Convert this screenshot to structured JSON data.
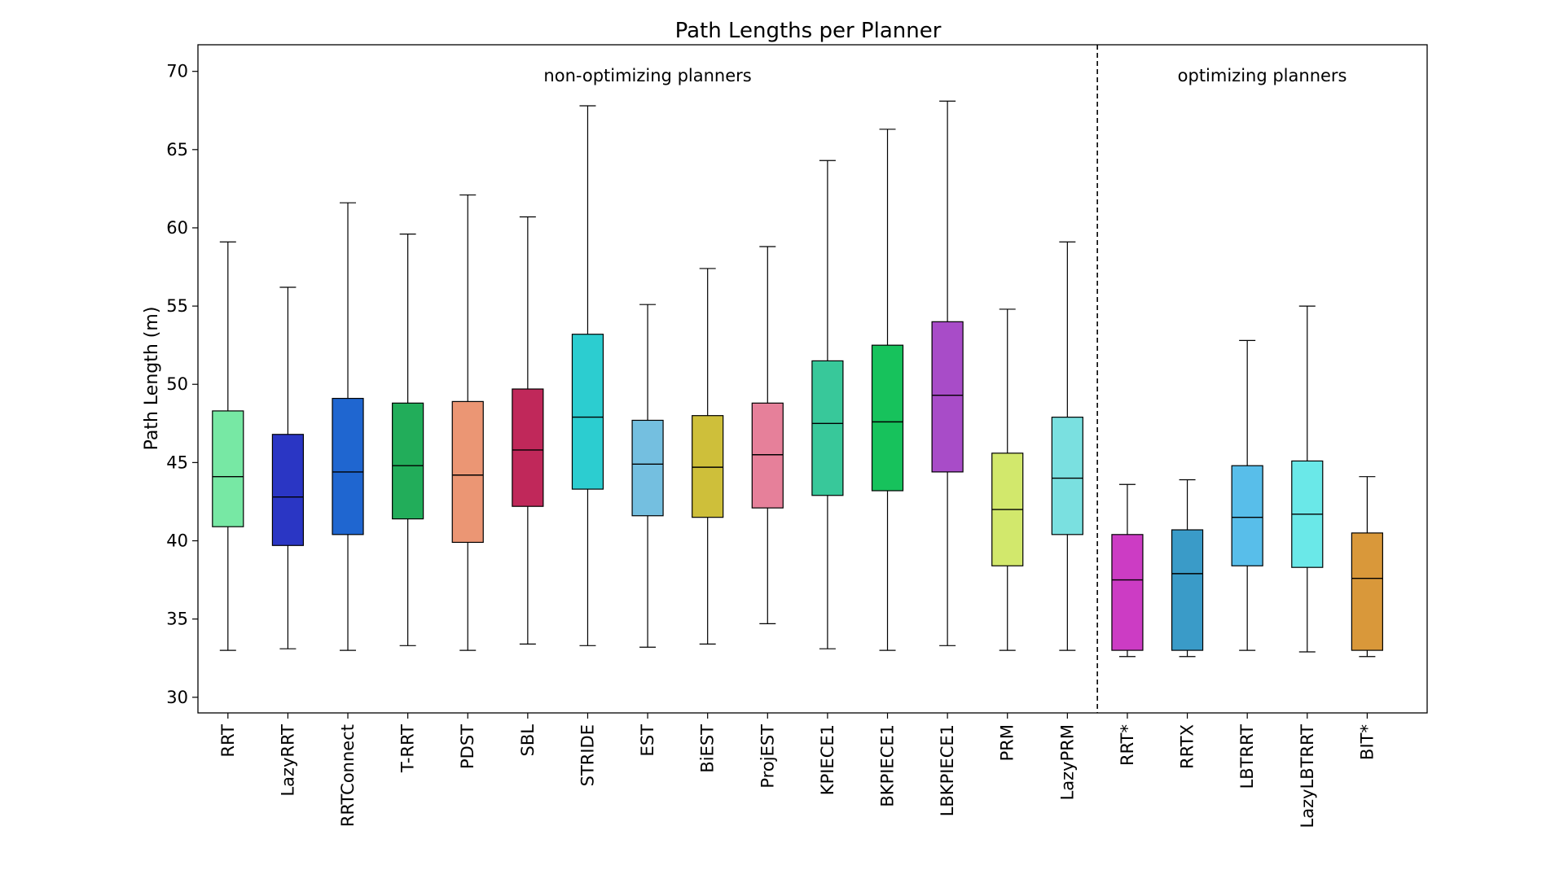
{
  "chart_data": {
    "type": "box",
    "title": "Path Lengths per Planner",
    "xlabel": "",
    "ylabel": "Path Length (m)",
    "ylim": [
      29,
      71.7
    ],
    "yticks": [
      30,
      35,
      40,
      45,
      50,
      55,
      60,
      65,
      70
    ],
    "grid": false,
    "legend": "none",
    "groups": [
      {
        "label": "non-optimizing planners",
        "count": 15
      },
      {
        "label": "optimizing planners",
        "count": 5
      }
    ],
    "boxes": [
      {
        "name": "RRT",
        "color": "#77e8a4",
        "whisker_low": 33.0,
        "q1": 40.9,
        "median": 44.1,
        "q3": 48.3,
        "whisker_high": 59.1
      },
      {
        "name": "LazyRRT",
        "color": "#2a36c4",
        "whisker_low": 33.1,
        "q1": 39.7,
        "median": 42.8,
        "q3": 46.8,
        "whisker_high": 56.2
      },
      {
        "name": "RRTConnect",
        "color": "#1f66d0",
        "whisker_low": 33.0,
        "q1": 40.4,
        "median": 44.4,
        "q3": 49.1,
        "whisker_high": 61.6
      },
      {
        "name": "T-RRT",
        "color": "#22ad5a",
        "whisker_low": 33.3,
        "q1": 41.4,
        "median": 44.8,
        "q3": 48.8,
        "whisker_high": 59.6
      },
      {
        "name": "PDST",
        "color": "#eb9674",
        "whisker_low": 33.0,
        "q1": 39.9,
        "median": 44.2,
        "q3": 48.9,
        "whisker_high": 62.1
      },
      {
        "name": "SBL",
        "color": "#c0285a",
        "whisker_low": 33.4,
        "q1": 42.2,
        "median": 45.8,
        "q3": 49.7,
        "whisker_high": 60.7
      },
      {
        "name": "STRIDE",
        "color": "#2ccdd0",
        "whisker_low": 33.3,
        "q1": 43.3,
        "median": 47.9,
        "q3": 53.2,
        "whisker_high": 67.8
      },
      {
        "name": "EST",
        "color": "#74bfe0",
        "whisker_low": 33.2,
        "q1": 41.6,
        "median": 44.9,
        "q3": 47.7,
        "whisker_high": 55.1
      },
      {
        "name": "BiEST",
        "color": "#cebf3a",
        "whisker_low": 33.4,
        "q1": 41.5,
        "median": 44.7,
        "q3": 48.0,
        "whisker_high": 57.4
      },
      {
        "name": "ProjEST",
        "color": "#e6809a",
        "whisker_low": 34.7,
        "q1": 42.1,
        "median": 45.5,
        "q3": 48.8,
        "whisker_high": 58.8
      },
      {
        "name": "KPIECE1",
        "color": "#38c89a",
        "whisker_low": 33.1,
        "q1": 42.9,
        "median": 47.5,
        "q3": 51.5,
        "whisker_high": 64.3
      },
      {
        "name": "BKPIECE1",
        "color": "#17c25c",
        "whisker_low": 33.0,
        "q1": 43.2,
        "median": 47.6,
        "q3": 52.5,
        "whisker_high": 66.3
      },
      {
        "name": "LBKPIECE1",
        "color": "#a84cc8",
        "whisker_low": 33.3,
        "q1": 44.4,
        "median": 49.3,
        "q3": 54.0,
        "whisker_high": 68.1
      },
      {
        "name": "PRM",
        "color": "#d2e86c",
        "whisker_low": 33.0,
        "q1": 38.4,
        "median": 42.0,
        "q3": 45.6,
        "whisker_high": 54.8
      },
      {
        "name": "LazyPRM",
        "color": "#7ae0e0",
        "whisker_low": 33.0,
        "q1": 40.4,
        "median": 44.0,
        "q3": 47.9,
        "whisker_high": 59.1
      },
      {
        "name": "RRT*",
        "color": "#cc3cc4",
        "whisker_low": 32.6,
        "q1": 33.0,
        "median": 37.5,
        "q3": 40.4,
        "whisker_high": 43.6
      },
      {
        "name": "RRTX",
        "color": "#3a9bc8",
        "whisker_low": 32.6,
        "q1": 33.0,
        "median": 37.9,
        "q3": 40.7,
        "whisker_high": 43.9
      },
      {
        "name": "LBTRRT",
        "color": "#58beea",
        "whisker_low": 33.0,
        "q1": 38.4,
        "median": 41.5,
        "q3": 44.8,
        "whisker_high": 52.8
      },
      {
        "name": "LazyLBTRRT",
        "color": "#6ae8e8",
        "whisker_low": 32.9,
        "q1": 38.3,
        "median": 41.7,
        "q3": 45.1,
        "whisker_high": 55.0
      },
      {
        "name": "BIT*",
        "color": "#d9983a",
        "whisker_low": 32.6,
        "q1": 33.0,
        "median": 37.6,
        "q3": 40.5,
        "whisker_high": 44.1
      }
    ]
  }
}
